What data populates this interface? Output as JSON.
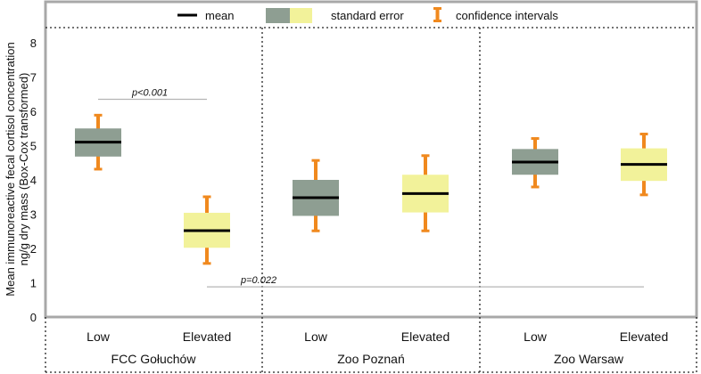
{
  "chart_data": {
    "type": "box",
    "ylabel_line1": "Mean immunoreactive fecal cortisol concentration",
    "ylabel_line2": "ng/g dry mass (Box-Cox transformed)",
    "ylim": [
      0,
      8.5
    ],
    "yticks": [
      0,
      1,
      2,
      3,
      4,
      5,
      6,
      7,
      8
    ],
    "legend": {
      "mean": "mean",
      "standard_error": "standard error",
      "confidence_intervals": "confidence intervals"
    },
    "colors": {
      "low": "#8e9e92",
      "elevated": "#f2f29a",
      "ci": "#f0891e",
      "mean": "#000000",
      "frame": "#a8a8a8"
    },
    "groups": [
      {
        "name": "FCC Gołuchów",
        "categories": [
          {
            "label": "Low",
            "kind": "low",
            "mean": 5.1,
            "se": [
              4.68,
              5.5
            ],
            "ci": [
              4.3,
              5.9
            ]
          },
          {
            "label": "Elevated",
            "kind": "elevated",
            "mean": 2.52,
            "se": [
              2.02,
              3.04
            ],
            "ci": [
              1.55,
              3.52
            ]
          }
        ]
      },
      {
        "name": "Zoo Poznań",
        "categories": [
          {
            "label": "Low",
            "kind": "low",
            "mean": 3.48,
            "se": [
              2.95,
              4.0
            ],
            "ci": [
              2.5,
              4.58
            ]
          },
          {
            "label": "Elevated",
            "kind": "elevated",
            "mean": 3.6,
            "se": [
              3.05,
              4.15
            ],
            "ci": [
              2.5,
              4.72
            ]
          }
        ]
      },
      {
        "name": "Zoo Warsaw",
        "categories": [
          {
            "label": "Low",
            "kind": "low",
            "mean": 4.52,
            "se": [
              4.15,
              4.9
            ],
            "ci": [
              3.78,
              5.22
            ]
          },
          {
            "label": "Elevated",
            "kind": "elevated",
            "mean": 4.45,
            "se": [
              3.97,
              4.92
            ],
            "ci": [
              3.55,
              5.35
            ]
          }
        ]
      }
    ],
    "annotations": [
      {
        "text": "p<0.001",
        "y": 6.35,
        "from": [
          0,
          0
        ],
        "to": [
          0,
          1
        ]
      },
      {
        "text": "p=0.022",
        "y": 0.88,
        "from": [
          0,
          1
        ],
        "to": [
          2,
          1
        ]
      }
    ]
  }
}
